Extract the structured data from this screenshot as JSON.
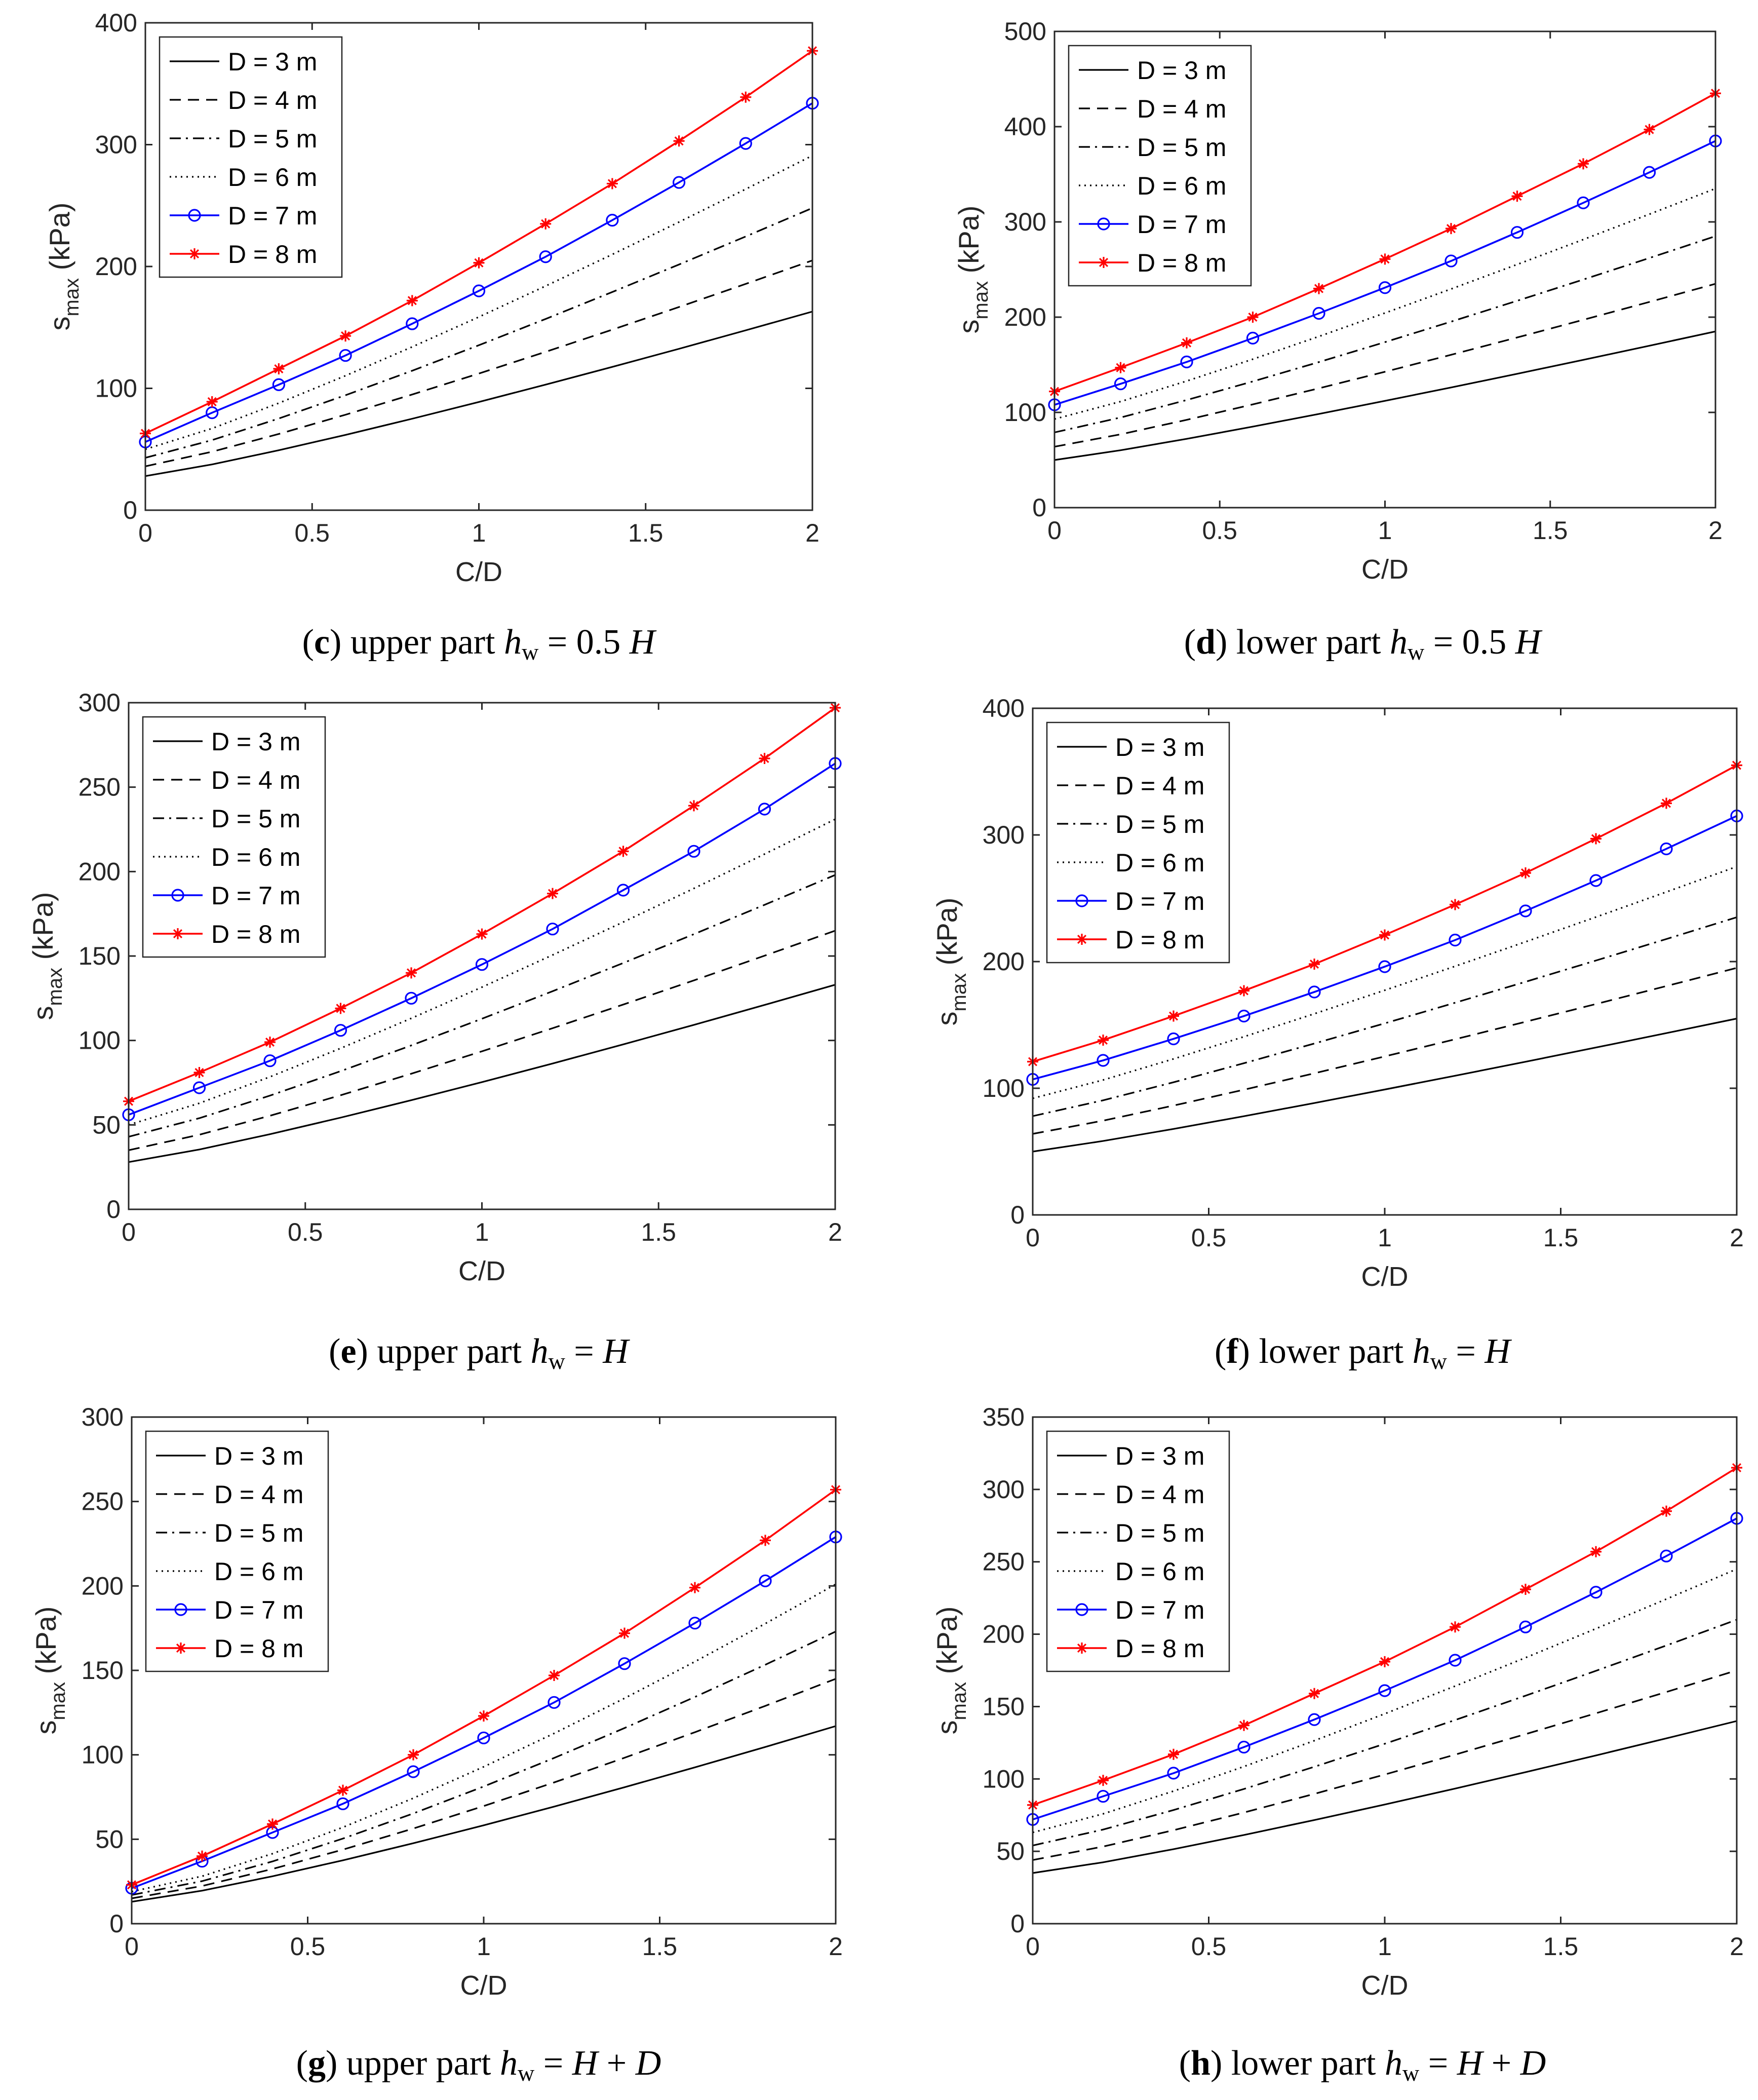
{
  "chart_data": [
    {
      "type": "line",
      "panel": "c",
      "caption": {
        "letter": "c",
        "part": "upper part",
        "h": "h",
        "sub": "w",
        "eq": "= 0.5",
        "suffix": "H"
      },
      "xlabel": "C/D",
      "ylabel": "s",
      "ylabel_sub": "max",
      "ylabel_unit": "(kPa)",
      "xlim": [
        0,
        2
      ],
      "ylim": [
        0,
        400
      ],
      "xticks": [
        0,
        0.5,
        1,
        1.5,
        2
      ],
      "xtick_labels": [
        "0",
        "0.5",
        "1",
        "1.5",
        "2"
      ],
      "yticks": [
        0,
        100,
        200,
        300,
        400
      ],
      "ytick_labels": [
        "0",
        "100",
        "200",
        "300",
        "400"
      ],
      "x": [
        0,
        0.2,
        0.4,
        0.6,
        0.8,
        1.0,
        1.2,
        1.4,
        1.6,
        1.8,
        2.0
      ],
      "series": [
        {
          "name": "D = 3 m",
          "start": 28,
          "end": 163,
          "power": 1.15
        },
        {
          "name": "D = 4 m",
          "start": 36,
          "end": 205,
          "power": 1.15
        },
        {
          "name": "D = 5 m",
          "start": 43,
          "end": 248,
          "power": 1.15
        },
        {
          "name": "D = 6 m",
          "start": 50,
          "end": 291,
          "power": 1.15
        },
        {
          "name": "D = 7 m",
          "values": [
            56,
            80,
            103,
            127,
            153,
            180,
            208,
            238,
            269,
            301,
            334
          ]
        },
        {
          "name": "D = 8 m",
          "values": [
            63,
            89,
            116,
            143,
            172,
            203,
            235,
            268,
            303,
            339,
            377
          ]
        }
      ]
    },
    {
      "type": "line",
      "panel": "d",
      "caption": {
        "letter": "d",
        "part": "lower part",
        "h": "h",
        "sub": "w",
        "eq": "= 0.5",
        "suffix": "H"
      },
      "xlabel": "C/D",
      "ylabel": "s",
      "ylabel_sub": "max",
      "ylabel_unit": "(kPa)",
      "xlim": [
        0,
        2
      ],
      "ylim": [
        0,
        500
      ],
      "xticks": [
        0,
        0.5,
        1,
        1.5,
        2
      ],
      "xtick_labels": [
        "0",
        "0.5",
        "1",
        "1.5",
        "2"
      ],
      "yticks": [
        0,
        100,
        200,
        300,
        400,
        500
      ],
      "ytick_labels": [
        "0",
        "100",
        "200",
        "300",
        "400",
        "500"
      ],
      "x": [
        0,
        0.2,
        0.4,
        0.6,
        0.8,
        1.0,
        1.2,
        1.4,
        1.6,
        1.8,
        2.0
      ],
      "series": [
        {
          "name": "D = 3 m",
          "start": 50,
          "end": 185,
          "power": 1.12
        },
        {
          "name": "D = 4 m",
          "start": 64,
          "end": 235,
          "power": 1.12
        },
        {
          "name": "D = 5 m",
          "start": 79,
          "end": 285,
          "power": 1.12
        },
        {
          "name": "D = 6 m",
          "start": 93,
          "end": 335,
          "power": 1.12
        },
        {
          "name": "D = 7 m",
          "values": [
            108,
            130,
            153,
            178,
            204,
            231,
            259,
            289,
            320,
            352,
            385
          ]
        },
        {
          "name": "D = 8 m",
          "values": [
            122,
            147,
            173,
            200,
            230,
            261,
            293,
            327,
            361,
            397,
            435
          ]
        }
      ]
    },
    {
      "type": "line",
      "panel": "e",
      "caption": {
        "letter": "e",
        "part": "upper part",
        "h": "h",
        "sub": "w",
        "eq": "=",
        "suffix": "H"
      },
      "xlabel": "C/D",
      "ylabel": "s",
      "ylabel_sub": "max",
      "ylabel_unit": "(kPa)",
      "xlim": [
        0,
        2
      ],
      "ylim": [
        0,
        300
      ],
      "xticks": [
        0,
        0.5,
        1,
        1.5,
        2
      ],
      "xtick_labels": [
        "0",
        "0.5",
        "1",
        "1.5",
        "2"
      ],
      "yticks": [
        0,
        50,
        100,
        150,
        200,
        250,
        300
      ],
      "ytick_labels": [
        "0",
        "50",
        "100",
        "150",
        "200",
        "250",
        "300"
      ],
      "x": [
        0,
        0.2,
        0.4,
        0.6,
        0.8,
        1.0,
        1.2,
        1.4,
        1.6,
        1.8,
        2.0
      ],
      "series": [
        {
          "name": "D = 3 m",
          "start": 28,
          "end": 133,
          "power": 1.15
        },
        {
          "name": "D = 4 m",
          "start": 35,
          "end": 165,
          "power": 1.15
        },
        {
          "name": "D = 5 m",
          "start": 43,
          "end": 198,
          "power": 1.15
        },
        {
          "name": "D = 6 m",
          "start": 50,
          "end": 231,
          "power": 1.15
        },
        {
          "name": "D = 7 m",
          "values": [
            56,
            72,
            88,
            106,
            125,
            145,
            166,
            189,
            212,
            237,
            264
          ]
        },
        {
          "name": "D = 8 m",
          "values": [
            64,
            81,
            99,
            119,
            140,
            163,
            187,
            212,
            239,
            267,
            297
          ]
        }
      ]
    },
    {
      "type": "line",
      "panel": "f",
      "caption": {
        "letter": "f",
        "part": "lower part",
        "h": "h",
        "sub": "w",
        "eq": "=",
        "suffix": "H"
      },
      "xlabel": "C/D",
      "ylabel": "s",
      "ylabel_sub": "max",
      "ylabel_unit": "(kPa)",
      "xlim": [
        0,
        2
      ],
      "ylim": [
        0,
        400
      ],
      "xticks": [
        0,
        0.5,
        1,
        1.5,
        2
      ],
      "xtick_labels": [
        "0",
        "0.5",
        "1",
        "1.5",
        "2"
      ],
      "yticks": [
        0,
        100,
        200,
        300,
        400
      ],
      "ytick_labels": [
        "0",
        "100",
        "200",
        "300",
        "400"
      ],
      "x": [
        0,
        0.2,
        0.4,
        0.6,
        0.8,
        1.0,
        1.2,
        1.4,
        1.6,
        1.8,
        2.0
      ],
      "series": [
        {
          "name": "D = 3 m",
          "start": 50,
          "end": 155,
          "power": 1.1
        },
        {
          "name": "D = 4 m",
          "start": 64,
          "end": 195,
          "power": 1.1
        },
        {
          "name": "D = 5 m",
          "start": 78,
          "end": 235,
          "power": 1.1
        },
        {
          "name": "D = 6 m",
          "start": 92,
          "end": 275,
          "power": 1.1
        },
        {
          "name": "D = 7 m",
          "values": [
            107,
            122,
            139,
            157,
            176,
            196,
            217,
            240,
            264,
            289,
            315
          ]
        },
        {
          "name": "D = 8 m",
          "values": [
            121,
            138,
            157,
            177,
            198,
            221,
            245,
            270,
            297,
            325,
            355
          ]
        }
      ]
    },
    {
      "type": "line",
      "panel": "g",
      "caption": {
        "letter": "g",
        "part": "upper part",
        "h": "h",
        "sub": "w",
        "eq": "=",
        "suffix": "H",
        "plus": "+",
        "suffix2": "D"
      },
      "xlabel": "C/D",
      "ylabel": "s",
      "ylabel_sub": "max",
      "ylabel_unit": "(kPa)",
      "xlim": [
        0,
        2
      ],
      "ylim": [
        0,
        300
      ],
      "xticks": [
        0,
        0.5,
        1,
        1.5,
        2
      ],
      "xtick_labels": [
        "0",
        "0.5",
        "1",
        "1.5",
        "2"
      ],
      "yticks": [
        0,
        50,
        100,
        150,
        200,
        250,
        300
      ],
      "ytick_labels": [
        "0",
        "50",
        "100",
        "150",
        "200",
        "250",
        "300"
      ],
      "x": [
        0,
        0.2,
        0.4,
        0.6,
        0.8,
        1.0,
        1.2,
        1.4,
        1.6,
        1.8,
        2.0
      ],
      "series": [
        {
          "name": "D = 3 m",
          "start": 13,
          "end": 117,
          "power": 1.2
        },
        {
          "name": "D = 4 m",
          "start": 15,
          "end": 145,
          "power": 1.25
        },
        {
          "name": "D = 5 m",
          "start": 17,
          "end": 173,
          "power": 1.28
        },
        {
          "name": "D = 6 m",
          "start": 19,
          "end": 201,
          "power": 1.3
        },
        {
          "name": "D = 7 m",
          "values": [
            21,
            37,
            54,
            71,
            90,
            110,
            131,
            154,
            178,
            203,
            229
          ]
        },
        {
          "name": "D = 8 m",
          "values": [
            23,
            40,
            59,
            79,
            100,
            123,
            147,
            172,
            199,
            227,
            257
          ]
        }
      ]
    },
    {
      "type": "line",
      "panel": "h",
      "caption": {
        "letter": "h",
        "part": "lower part",
        "h": "h",
        "sub": "w",
        "eq": "=",
        "suffix": "H",
        "plus": "+",
        "suffix2": "D"
      },
      "xlabel": "C/D",
      "ylabel": "s",
      "ylabel_sub": "max",
      "ylabel_unit": "(kPa)",
      "xlim": [
        0,
        2
      ],
      "ylim": [
        0,
        350
      ],
      "xticks": [
        0,
        0.5,
        1,
        1.5,
        2
      ],
      "xtick_labels": [
        "0",
        "0.5",
        "1",
        "1.5",
        "2"
      ],
      "yticks": [
        0,
        50,
        100,
        150,
        200,
        250,
        300,
        350
      ],
      "ytick_labels": [
        "0",
        "50",
        "100",
        "150",
        "200",
        "250",
        "300",
        "350"
      ],
      "x": [
        0,
        0.2,
        0.4,
        0.6,
        0.8,
        1.0,
        1.2,
        1.4,
        1.6,
        1.8,
        2.0
      ],
      "series": [
        {
          "name": "D = 3 m",
          "start": 35,
          "end": 140,
          "power": 1.15
        },
        {
          "name": "D = 4 m",
          "start": 44,
          "end": 175,
          "power": 1.15
        },
        {
          "name": "D = 5 m",
          "start": 54,
          "end": 210,
          "power": 1.15
        },
        {
          "name": "D = 6 m",
          "start": 63,
          "end": 245,
          "power": 1.15
        },
        {
          "name": "D = 7 m",
          "values": [
            72,
            88,
            104,
            122,
            141,
            161,
            182,
            205,
            229,
            254,
            280
          ]
        },
        {
          "name": "D = 8 m",
          "values": [
            82,
            99,
            117,
            137,
            159,
            181,
            205,
            231,
            257,
            285,
            315
          ]
        }
      ]
    }
  ],
  "colors": {
    "axis": "#262626",
    "black_series": "#000000",
    "blue_series": "#0000ff",
    "red_series": "#ff0000",
    "background": "#ffffff"
  }
}
